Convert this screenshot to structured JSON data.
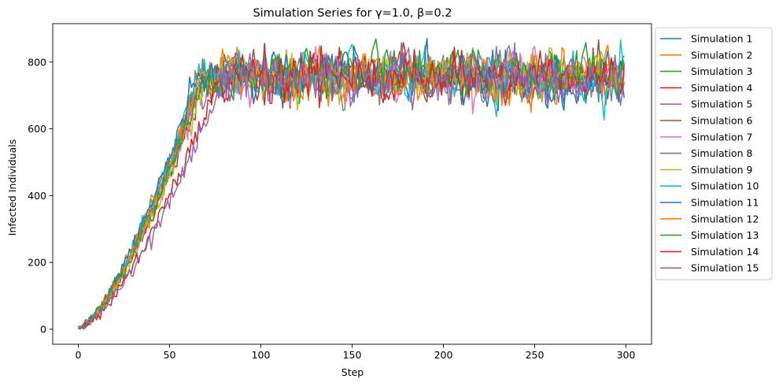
{
  "chart_data": {
    "type": "line",
    "title": "Simulation Series for γ=1.0, β=0.2",
    "xlabel": "Step",
    "ylabel": "Infected Individuals",
    "xlim": [
      -14,
      314
    ],
    "ylim": [
      -45,
      915
    ],
    "xticks": [
      0,
      50,
      100,
      150,
      200,
      250,
      300
    ],
    "yticks": [
      0,
      200,
      400,
      600,
      800
    ],
    "grid": false,
    "legend": "outside-right",
    "n_steps": 300,
    "series": [
      {
        "name": "Simulation 1",
        "color": "#1f77b4",
        "t_reach": 68,
        "plateau": 755,
        "seed": 1
      },
      {
        "name": "Simulation 2",
        "color": "#ff7f0e",
        "t_reach": 66,
        "plateau": 760,
        "seed": 2
      },
      {
        "name": "Simulation 3",
        "color": "#2ca02c",
        "t_reach": 69,
        "plateau": 765,
        "seed": 3
      },
      {
        "name": "Simulation 4",
        "color": "#d62728",
        "t_reach": 70,
        "plateau": 758,
        "seed": 4
      },
      {
        "name": "Simulation 5",
        "color": "#9467bd",
        "t_reach": 67,
        "plateau": 752,
        "seed": 5
      },
      {
        "name": "Simulation 6",
        "color": "#8c564b",
        "t_reach": 68,
        "plateau": 757,
        "seed": 6
      },
      {
        "name": "Simulation 7",
        "color": "#e377c2",
        "t_reach": 69,
        "plateau": 750,
        "seed": 7
      },
      {
        "name": "Simulation 8",
        "color": "#7f7f7f",
        "t_reach": 67,
        "plateau": 756,
        "seed": 8
      },
      {
        "name": "Simulation 9",
        "color": "#bcbd22",
        "t_reach": 70,
        "plateau": 762,
        "seed": 9
      },
      {
        "name": "Simulation 10",
        "color": "#17becf",
        "t_reach": 66,
        "plateau": 758,
        "seed": 10
      },
      {
        "name": "Simulation 11",
        "color": "#1f77b4",
        "t_reach": 65,
        "plateau": 760,
        "seed": 11
      },
      {
        "name": "Simulation 12",
        "color": "#ff7f0e",
        "t_reach": 68,
        "plateau": 764,
        "seed": 12
      },
      {
        "name": "Simulation 13",
        "color": "#2ca02c",
        "t_reach": 69,
        "plateau": 762,
        "seed": 13
      },
      {
        "name": "Simulation 14",
        "color": "#d62728",
        "t_reach": 78,
        "plateau": 758,
        "seed": 14
      },
      {
        "name": "Simulation 15",
        "color": "#9467bd",
        "t_reach": 80,
        "plateau": 754,
        "seed": 15
      }
    ]
  }
}
